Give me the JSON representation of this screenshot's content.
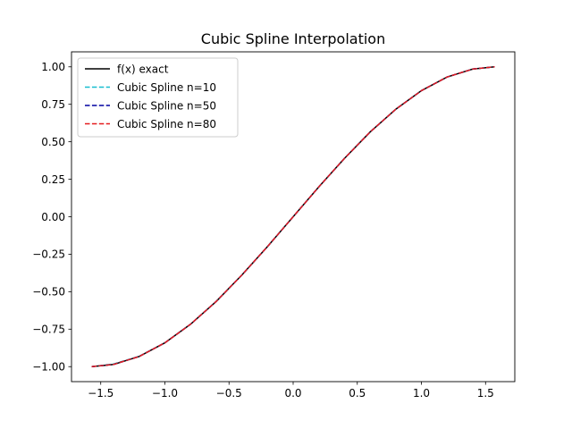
{
  "chart_data": {
    "type": "line",
    "title": "Cubic Spline Interpolation",
    "xlabel": "",
    "ylabel": "",
    "xlim": [
      -1.728,
      1.728
    ],
    "ylim": [
      -1.1,
      1.1
    ],
    "x_ticks": [
      {
        "value": -1.5,
        "label": "−1.5"
      },
      {
        "value": -1.0,
        "label": "−1.0"
      },
      {
        "value": -0.5,
        "label": "−0.5"
      },
      {
        "value": 0.0,
        "label": "0.0"
      },
      {
        "value": 0.5,
        "label": "0.5"
      },
      {
        "value": 1.0,
        "label": "1.0"
      },
      {
        "value": 1.5,
        "label": "1.5"
      }
    ],
    "y_ticks": [
      {
        "value": -1.0,
        "label": "−1.00"
      },
      {
        "value": -0.75,
        "label": "−0.75"
      },
      {
        "value": -0.5,
        "label": "−0.50"
      },
      {
        "value": -0.25,
        "label": "−0.25"
      },
      {
        "value": 0.0,
        "label": "0.00"
      },
      {
        "value": 0.25,
        "label": "0.25"
      },
      {
        "value": 0.5,
        "label": "0.50"
      },
      {
        "value": 0.75,
        "label": "0.75"
      },
      {
        "value": 1.0,
        "label": "1.00"
      }
    ],
    "grid": false,
    "legend_position": "upper-left",
    "x": [
      -1.5708,
      -1.4,
      -1.2,
      -1.0,
      -0.8,
      -0.6,
      -0.4,
      -0.2,
      0.0,
      0.2,
      0.4,
      0.6,
      0.8,
      1.0,
      1.2,
      1.4,
      1.5708
    ],
    "series": [
      {
        "name": "f(x) exact",
        "color": "#000000",
        "dash": "solid",
        "values": [
          -1.0,
          -0.985,
          -0.932,
          -0.841,
          -0.717,
          -0.565,
          -0.389,
          -0.199,
          0.0,
          0.199,
          0.389,
          0.565,
          0.717,
          0.841,
          0.932,
          0.985,
          1.0
        ]
      },
      {
        "name": "Cubic Spline n=10",
        "color": "#17becf",
        "dash": "dashed",
        "values": [
          -1.0,
          -0.982,
          -0.931,
          -0.841,
          -0.717,
          -0.565,
          -0.389,
          -0.199,
          0.0,
          0.199,
          0.389,
          0.565,
          0.717,
          0.841,
          0.932,
          0.985,
          1.0
        ]
      },
      {
        "name": "Cubic Spline n=50",
        "color": "#0000a0",
        "dash": "dashed",
        "values": [
          -1.0,
          -0.985,
          -0.932,
          -0.841,
          -0.717,
          -0.565,
          -0.389,
          -0.199,
          0.0,
          0.199,
          0.389,
          0.565,
          0.717,
          0.841,
          0.932,
          0.985,
          1.0
        ]
      },
      {
        "name": "Cubic Spline n=80",
        "color": "#e41a1c",
        "dash": "dashed",
        "values": [
          -1.0,
          -0.985,
          -0.932,
          -0.841,
          -0.717,
          -0.565,
          -0.389,
          -0.199,
          0.0,
          0.199,
          0.389,
          0.565,
          0.717,
          0.841,
          0.932,
          0.985,
          1.0
        ]
      }
    ]
  }
}
